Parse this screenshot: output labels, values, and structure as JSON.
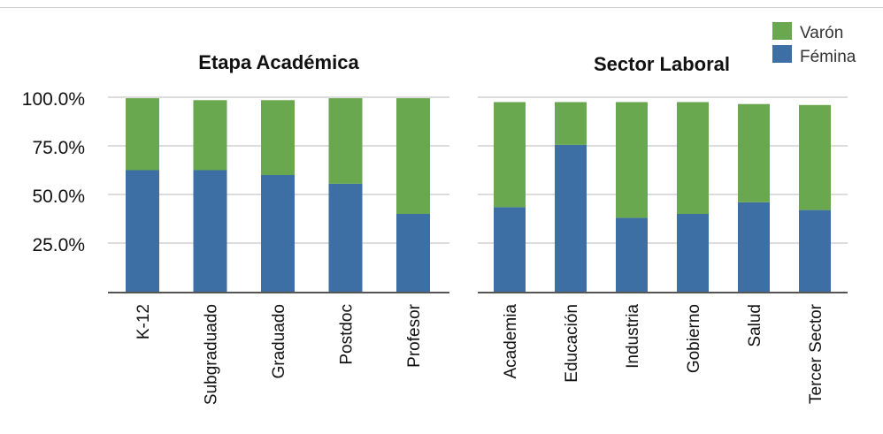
{
  "legend": [
    {
      "label": "Varón",
      "color": "#6aa84f"
    },
    {
      "label": "Fémina",
      "color": "#3d6fa4"
    }
  ],
  "chart_data": [
    {
      "type": "bar",
      "stacked": true,
      "title": "Etapa Académica",
      "categories": [
        "K-12",
        "Subgraduado",
        "Graduado",
        "Postdoc",
        "Profesor"
      ],
      "series": [
        {
          "name": "Fémina",
          "values": [
            62.5,
            62.5,
            60.0,
            55.5,
            40.0
          ]
        },
        {
          "name": "Varón",
          "values": [
            37.0,
            36.0,
            38.5,
            44.0,
            59.5
          ]
        }
      ],
      "yticks": [
        "100.0%",
        "75.0%",
        "50.0%",
        "25.0%"
      ],
      "ylim": [
        0,
        100
      ],
      "grid": true,
      "legend_position": "top-right"
    },
    {
      "type": "bar",
      "stacked": true,
      "title": "Sector Laboral",
      "categories": [
        "Academia",
        "Educación",
        "Industria",
        "Gobierno",
        "Salud",
        "Tercer Sector"
      ],
      "series": [
        {
          "name": "Fémina",
          "values": [
            43.5,
            75.5,
            38.0,
            40.0,
            46.0,
            42.0
          ]
        },
        {
          "name": "Varón",
          "values": [
            54.0,
            22.0,
            59.5,
            57.5,
            50.5,
            54.0
          ]
        }
      ],
      "ylim": [
        0,
        100
      ],
      "grid": true
    }
  ]
}
